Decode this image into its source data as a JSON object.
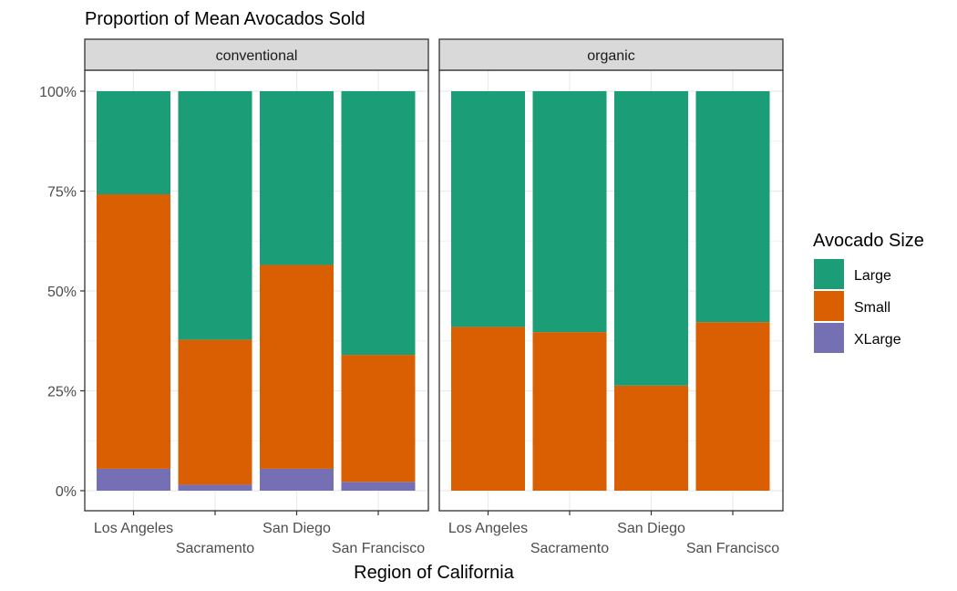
{
  "chart_data": {
    "type": "bar",
    "stacked": true,
    "title": "Proportion of Mean Avocados Sold",
    "xlabel": "Region of California",
    "ylabel": "",
    "ylim": [
      0,
      1
    ],
    "y_ticks": [
      "0%",
      "25%",
      "50%",
      "75%",
      "100%"
    ],
    "categories": [
      "Los Angeles",
      "Sacramento",
      "San Diego",
      "San Francisco"
    ],
    "legend": {
      "title": "Avocado Size",
      "position": "right"
    },
    "grid": true,
    "panels": [
      {
        "name": "conventional",
        "series": [
          {
            "name": "XLarge",
            "color": "#7570B3",
            "values": [
              0.055,
              0.015,
              0.055,
              0.022
            ]
          },
          {
            "name": "Small",
            "color": "#D95F02",
            "values": [
              0.687,
              0.363,
              0.51,
              0.318
            ]
          },
          {
            "name": "Large",
            "color": "#1B9E77",
            "values": [
              0.258,
              0.622,
              0.435,
              0.66
            ]
          }
        ]
      },
      {
        "name": "organic",
        "series": [
          {
            "name": "XLarge",
            "color": "#7570B3",
            "values": [
              0.0,
              0.0,
              0.0,
              0.0
            ]
          },
          {
            "name": "Small",
            "color": "#D95F02",
            "values": [
              0.41,
              0.397,
              0.263,
              0.422
            ]
          },
          {
            "name": "Large",
            "color": "#1B9E77",
            "values": [
              0.59,
              0.603,
              0.737,
              0.578
            ]
          }
        ]
      }
    ],
    "legend_items": [
      {
        "name": "Large",
        "color": "#1B9E77"
      },
      {
        "name": "Small",
        "color": "#D95F02"
      },
      {
        "name": "XLarge",
        "color": "#7570B3"
      }
    ]
  }
}
